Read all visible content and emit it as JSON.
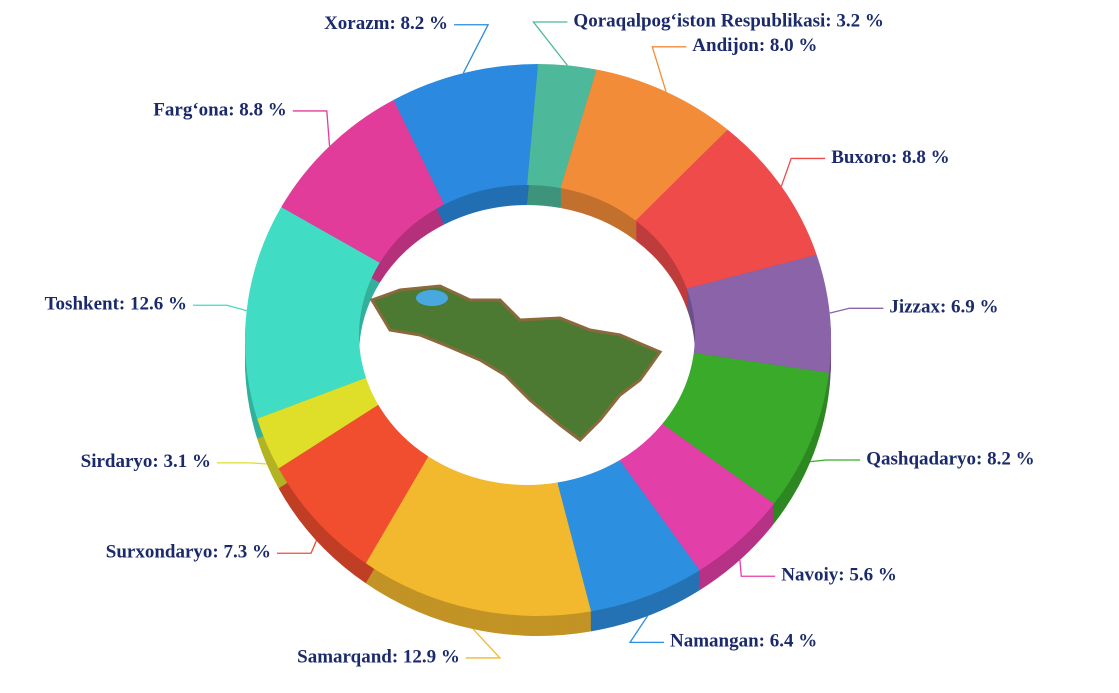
{
  "chart_data": {
    "type": "donut",
    "values": [
      3.2,
      8.0,
      8.8,
      6.9,
      8.2,
      5.6,
      6.4,
      12.9,
      7.3,
      3.1,
      12.6,
      8.8,
      8.2
    ],
    "value_labels": [
      "Qoraqalpog‘iston Respublikasi: 3.2 %",
      "Andijon: 8.0 %",
      "Buxoro: 8.8 %",
      "Jizzax: 6.9 %",
      "Qashqadaryo: 8.2 %",
      "Navoiy: 5.6 %",
      "Namangan: 6.4 %",
      "Samarqand: 12.9 %",
      "Surxondaryo: 7.3 %",
      "Sirdaryo: 3.1 %",
      "Toshkent: 12.6 %",
      "Farg‘ona: 8.8 %",
      "Xorazm: 8.2 %"
    ],
    "colors": [
      "#4db89a",
      "#f28c38",
      "#ef4b4b",
      "#8a63a8",
      "#3aaa2a",
      "#e33fa8",
      "#2d8fe0",
      "#f2b82e",
      "#f04e2e",
      "#dfdf2a",
      "#40dcc3",
      "#e23c9a",
      "#2b8ae0"
    ]
  }
}
